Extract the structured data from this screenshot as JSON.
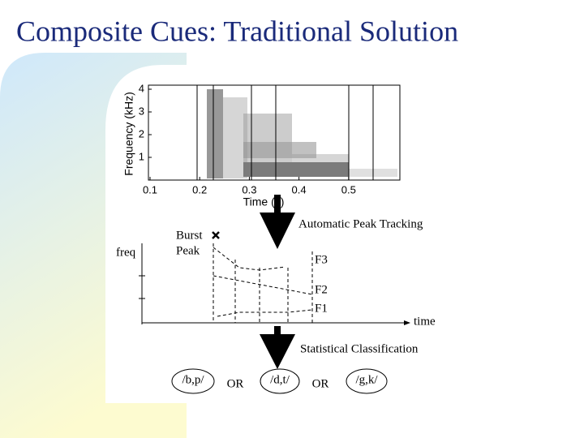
{
  "header": {
    "title": "Composite Cues: Traditional Solution"
  },
  "spectrogram": {
    "y_label": "Frequency (kHz)",
    "x_label": "Time (s)",
    "yticks": [
      1,
      2,
      3,
      4
    ],
    "xticks": [
      0.1,
      0.2,
      0.3,
      0.4,
      0.5
    ]
  },
  "diagram": {
    "step1": "Automatic Peak Tracking",
    "burst": "Burst",
    "peak": "Peak",
    "y_axis": "freq",
    "x_axis": "time",
    "formants": [
      "F3",
      "F2",
      "F1"
    ],
    "step2": "Statistical Classification",
    "outcomes": [
      "/b,p/",
      "OR",
      "/d,t/",
      "OR",
      "/g,k/"
    ]
  }
}
